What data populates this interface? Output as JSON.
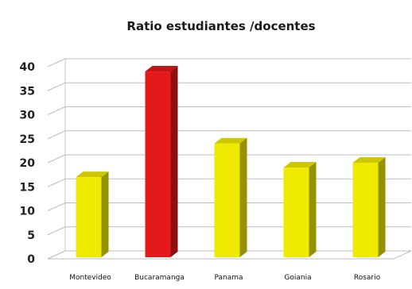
{
  "chart_data": {
    "type": "bar",
    "title": "Ratio estudiantes /docentes",
    "xlabel": "",
    "ylabel": "",
    "categories": [
      "Montevideo",
      "Bucaramanga",
      "Panama",
      "Goiania",
      "Rosario"
    ],
    "values": [
      17,
      39,
      24,
      19,
      20
    ],
    "bar_colors": [
      "#f0ea00",
      "#e41a1a",
      "#f0ea00",
      "#f0ea00",
      "#f0ea00"
    ],
    "ylim": [
      0,
      40
    ],
    "yticks": [
      0,
      5,
      10,
      15,
      20,
      25,
      30,
      35,
      40
    ],
    "grid": true,
    "legend": "none",
    "style": "3d-column"
  }
}
